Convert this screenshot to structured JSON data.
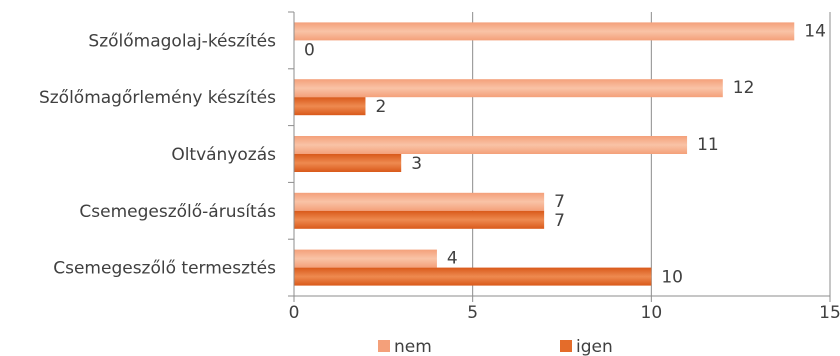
{
  "chart_data": {
    "type": "bar",
    "orientation": "horizontal",
    "title": "",
    "xlabel": "",
    "ylabel": "",
    "categories": [
      "Csemegeszőlő termesztés",
      "Csemegeszőlő-árusítás",
      "Oltványozás",
      "Szőlőmagőrlemény készítés",
      "Szőlőmagolaj-készítés"
    ],
    "series": [
      {
        "name": "igen",
        "values": [
          10,
          7,
          3,
          2,
          0
        ],
        "color": "#e46c2a"
      },
      {
        "name": "nem",
        "values": [
          4,
          7,
          11,
          12,
          14
        ],
        "color": "#f4a07a"
      }
    ],
    "xlim": [
      0,
      15
    ],
    "xticks": [
      "0",
      "5",
      "10",
      "15"
    ],
    "grid": "vertical",
    "legend_position": "bottom"
  },
  "legend": [
    {
      "label": "nem",
      "color": "#f4a07a"
    },
    {
      "label": "igen",
      "color": "#e46c2a"
    }
  ]
}
